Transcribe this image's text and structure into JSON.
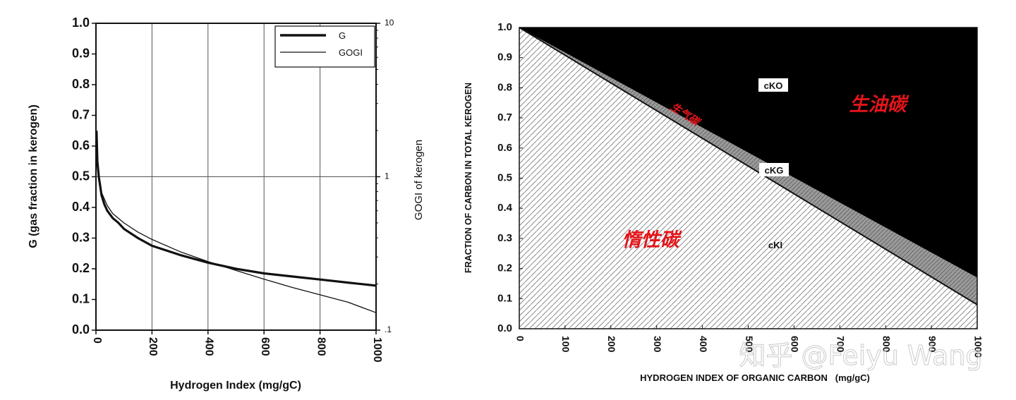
{
  "chart_data": [
    {
      "type": "line",
      "xlabel": "Hydrogen Index (mg/gC)",
      "ylabel": "G (gas fraction in kerogen)",
      "y2label": "GOGI of kerogen",
      "xlim": [
        0,
        1000
      ],
      "ylim": [
        0,
        1.0
      ],
      "y2lim": [
        0.1,
        10
      ],
      "y2scale": "log",
      "grid": "vertical every 200 plus horizontal at 0.5",
      "legend_position": "top-right",
      "x_ticks": [
        "0",
        "200",
        "400",
        "600",
        "800",
        "1000"
      ],
      "y_ticks": [
        "0.0",
        "0.1",
        "0.2",
        "0.3",
        "0.4",
        "0.5",
        "0.6",
        "0.7",
        "0.8",
        "0.9",
        "1.0"
      ],
      "y2_ticks": [
        "10",
        "1",
        ".1"
      ],
      "series": [
        {
          "name": "G",
          "axis": "left",
          "style": "thick",
          "x": [
            2,
            5,
            10,
            15,
            20,
            30,
            40,
            60,
            80,
            100,
            150,
            200,
            300,
            400,
            500,
            600,
            700,
            800,
            900,
            1000
          ],
          "values": [
            0.65,
            0.55,
            0.5,
            0.47,
            0.44,
            0.41,
            0.39,
            0.365,
            0.35,
            0.33,
            0.3,
            0.275,
            0.245,
            0.22,
            0.2,
            0.185,
            0.175,
            0.165,
            0.155,
            0.145
          ]
        },
        {
          "name": "GOGI",
          "axis": "right",
          "style": "thin",
          "x": [
            5,
            10,
            20,
            40,
            60,
            100,
            150,
            200,
            300,
            400,
            500,
            600,
            700,
            800,
            900,
            1000
          ],
          "values": [
            1.22,
            1.0,
            0.79,
            0.65,
            0.575,
            0.5,
            0.435,
            0.39,
            0.325,
            0.28,
            0.245,
            0.215,
            0.19,
            0.17,
            0.152,
            0.13
          ]
        }
      ]
    },
    {
      "type": "area",
      "xlabel": "HYDROGEN INDEX OF ORGANIC CARBON   (mg/gC)",
      "ylabel": "FRACTION OF CARBON IN TOTAL KEROGEN",
      "xlim": [
        0,
        1000
      ],
      "ylim": [
        0,
        1.0
      ],
      "x_ticks": [
        "0",
        "100",
        "200",
        "300",
        "400",
        "500",
        "600",
        "700",
        "800",
        "900",
        "1000"
      ],
      "y_ticks": [
        "0.0",
        "0.1",
        "0.2",
        "0.3",
        "0.4",
        "0.5",
        "0.6",
        "0.7",
        "0.8",
        "0.9",
        "1.0"
      ],
      "boundaries": [
        {
          "name": "cKI upper boundary",
          "x": [
            0,
            1000
          ],
          "y": [
            1.0,
            0.08
          ]
        },
        {
          "name": "cKG upper boundary",
          "x": [
            0,
            1000
          ],
          "y": [
            1.0,
            0.17
          ]
        }
      ],
      "regions": [
        {
          "label": "cKO",
          "fill": "#000000"
        },
        {
          "label": "cKG",
          "fill": "#9a9a9a"
        },
        {
          "label": "cKI",
          "fill": "#ffffff"
        }
      ],
      "annotations": {
        "cko": "cKO",
        "ckg": "cKG",
        "cki": "cKI",
        "oil_cn": "生油碳",
        "gas_cn": "生气碳",
        "inert_cn": "惰性碳"
      }
    }
  ],
  "watermark": "知乎 @Feiyu Wang",
  "colors": {
    "axis": "#111111",
    "annotation_red": "#e3151a",
    "gas_band": "#9a9a9a",
    "oil_region": "#000000"
  }
}
